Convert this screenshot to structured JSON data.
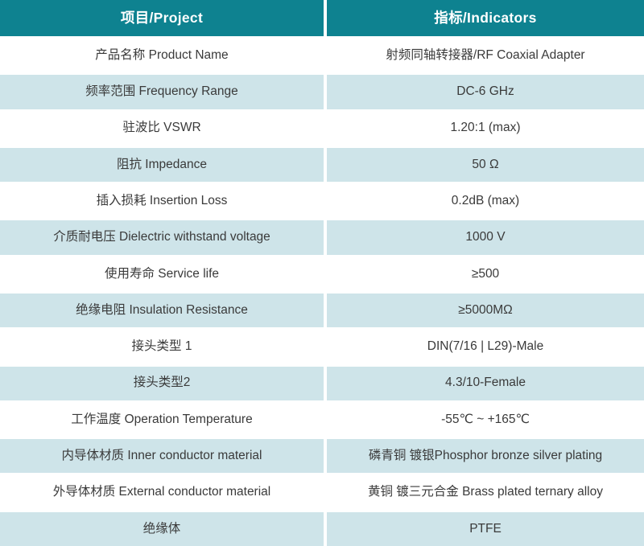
{
  "table": {
    "header": {
      "project": "项目/Project",
      "indicators": "指标/Indicators"
    },
    "rows": [
      {
        "label": "产品名称 Product Name",
        "value": "射频同轴转接器/RF Coaxial Adapter"
      },
      {
        "label": "频率范围 Frequency Range",
        "value": "DC-6 GHz"
      },
      {
        "label": "驻波比 VSWR",
        "value": "1.20:1 (max)"
      },
      {
        "label": "阻抗 Impedance",
        "value": "50 Ω"
      },
      {
        "label": "插入损耗 Insertion Loss",
        "value": "0.2dB (max)"
      },
      {
        "label": "介质耐电压 Dielectric withstand voltage",
        "value": "1000 V"
      },
      {
        "label": "使用寿命 Service life",
        "value": "≥500"
      },
      {
        "label": "绝缘电阻 Insulation Resistance",
        "value": "≥5000MΩ"
      },
      {
        "label": "接头类型 1",
        "value": "DIN(7/16 | L29)-Male"
      },
      {
        "label": "接头类型2",
        "value": "4.3/10-Female"
      },
      {
        "label": "工作温度 Operation Temperature",
        "value": "-55℃ ~ +165℃"
      },
      {
        "label": "内导体材质 Inner conductor material",
        "value": "磷青铜 镀银Phosphor bronze silver plating"
      },
      {
        "label": "外导体材质 External conductor material",
        "value": "黄铜 镀三元合金 Brass plated ternary alloy"
      },
      {
        "label": "绝缘体",
        "value": "PTFE"
      }
    ]
  },
  "colors": {
    "header_bg": "#0e8290",
    "alt_row_bg": "#cee4e9",
    "row_bg": "#ffffff",
    "divider": "#ffffff",
    "text": "#3a3a3a",
    "header_text": "#ffffff"
  }
}
